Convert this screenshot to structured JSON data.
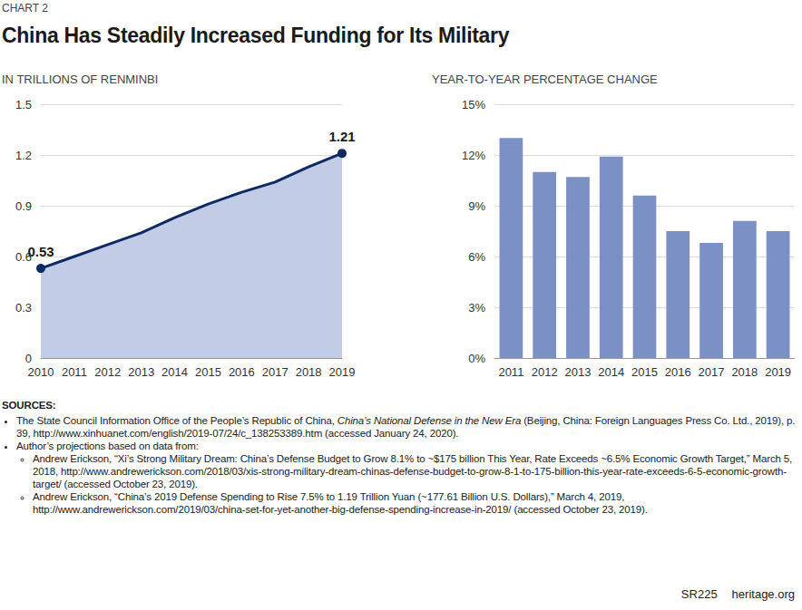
{
  "chart_label": "CHART 2",
  "title": "China Has Steadily Increased Funding for Its Military",
  "chart_data": [
    {
      "type": "line",
      "subtitle": "IN TRILLIONS OF RENMINBI",
      "categories": [
        "2010",
        "2011",
        "2012",
        "2013",
        "2014",
        "2015",
        "2016",
        "2017",
        "2018",
        "2019"
      ],
      "values": [
        0.53,
        0.6,
        0.67,
        0.74,
        0.83,
        0.91,
        0.98,
        1.04,
        1.13,
        1.21
      ],
      "data_labels": true,
      "value_labels": [
        "0.53",
        null,
        null,
        null,
        null,
        null,
        null,
        null,
        null,
        "1.21"
      ],
      "color": "#0e2a63",
      "marker": "circle",
      "ylim": [
        0,
        1.5
      ],
      "yticks": [
        0,
        0.3,
        0.6,
        0.9,
        1.2,
        1.5
      ],
      "grid": true
    },
    {
      "type": "bar",
      "subtitle": "YEAR-TO-YEAR PERCENTAGE CHANGE",
      "categories": [
        "2011",
        "2012",
        "2013",
        "2014",
        "2015",
        "2016",
        "2017",
        "2018",
        "2019"
      ],
      "values": [
        13.0,
        11.0,
        10.7,
        11.9,
        9.6,
        7.5,
        6.8,
        8.1,
        7.5
      ],
      "color": "#7b90c4",
      "ylim": [
        0,
        15
      ],
      "yticks": [
        {
          "value": 0,
          "label": "0%"
        },
        {
          "value": 3,
          "label": "3%"
        },
        {
          "value": 6,
          "label": "6%"
        },
        {
          "value": 9,
          "label": "9%"
        },
        {
          "value": 12,
          "label": "12%"
        },
        {
          "value": 15,
          "label": "15%"
        }
      ],
      "grid": true
    }
  ],
  "sources": {
    "heading": "SOURCES:",
    "items": [
      {
        "segments": [
          {
            "text": "The State Council Information Office of the People’s Republic of China, "
          },
          {
            "text": "China’s National Defense in the New Era",
            "italic": true
          },
          {
            "text": " (Beijing, China: Foreign Languages Press Co. Ltd., 2019), p. 39, http://www.xinhuanet.com/english/2019-07/24/c_138253389.htm (accessed January 24, 2020)."
          }
        ]
      },
      {
        "segments": [
          {
            "text": "Author’s projections based on data from:"
          }
        ],
        "items": [
          {
            "segments": [
              {
                "text": "Andrew Erickson, “Xi’s Strong Military Dream: China’s Defense Budget to Grow 8.1% to ~$175 billion This Year, Rate Exceeds ~6.5% Economic Growth Target,” March 5, 2018, http://www.andrewerickson.com/2018/03/xis-strong-military-dream-chinas-defense-budget-to-grow-8-1-to-175-billion-this-year-rate-exceeds-6-5-economic-growth-target/ (accessed October 23, 2019)."
              }
            ]
          },
          {
            "segments": [
              {
                "text": "Andrew Erickson, “China’s 2019 Defense Spending to Rise 7.5% to 1.19 Trillion Yuan (~177.61 Billion U.S. Dollars),” March 4, 2019, http://www.andrewerickson.com/2019/03/china-set-for-yet-another-big-defense-spending-increase-in-2019/ (accessed October 23, 2019)."
              }
            ]
          }
        ]
      }
    ]
  },
  "footer": [
    "SR225",
    "heritage.org"
  ]
}
